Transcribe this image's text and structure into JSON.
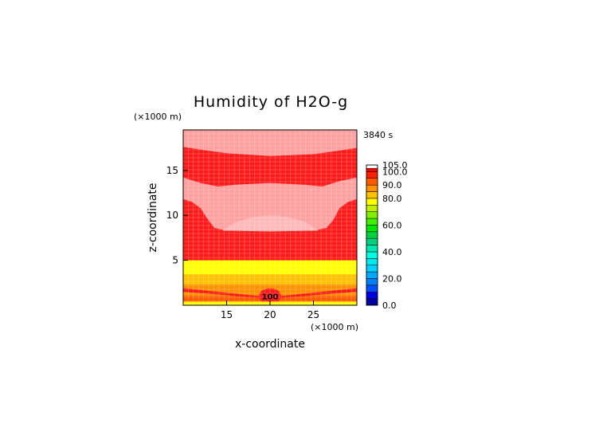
{
  "chart_data": {
    "type": "heatmap",
    "title": "Humidity of H2O-g",
    "xlabel": "x-coordinate",
    "ylabel": "z-coordinate",
    "x_unit": "(×1000 m)",
    "y_unit": "(×1000 m)",
    "time_label": "3840 s",
    "xlim": [
      10,
      30
    ],
    "ylim": [
      0,
      19.5
    ],
    "x_ticks": [
      15,
      20,
      25
    ],
    "y_ticks": [
      5,
      10,
      15
    ],
    "grid": true,
    "colorbar": {
      "ticks": [
        "105.0",
        "100.0",
        "90.0",
        "80.0",
        "60.0",
        "40.0",
        "20.0",
        "0.0"
      ],
      "levels": [
        {
          "from": 0,
          "to": 5,
          "color": "#0000a0"
        },
        {
          "from": 5,
          "to": 10,
          "color": "#0000e0"
        },
        {
          "from": 10,
          "to": 15,
          "color": "#0050ff"
        },
        {
          "from": 15,
          "to": 20,
          "color": "#0080ff"
        },
        {
          "from": 20,
          "to": 25,
          "color": "#00a8ff"
        },
        {
          "from": 25,
          "to": 30,
          "color": "#00d0ff"
        },
        {
          "from": 30,
          "to": 35,
          "color": "#00e8f0"
        },
        {
          "from": 35,
          "to": 40,
          "color": "#00ffe0"
        },
        {
          "from": 40,
          "to": 45,
          "color": "#00e8b0"
        },
        {
          "from": 45,
          "to": 50,
          "color": "#00d080"
        },
        {
          "from": 50,
          "to": 55,
          "color": "#00d040"
        },
        {
          "from": 55,
          "to": 60,
          "color": "#00e800"
        },
        {
          "from": 60,
          "to": 65,
          "color": "#40f000"
        },
        {
          "from": 65,
          "to": 70,
          "color": "#80f000"
        },
        {
          "from": 70,
          "to": 75,
          "color": "#c0f000"
        },
        {
          "from": 75,
          "to": 80,
          "color": "#ffff00"
        },
        {
          "from": 80,
          "to": 85,
          "color": "#ffc000"
        },
        {
          "from": 85,
          "to": 90,
          "color": "#ff9000"
        },
        {
          "from": 90,
          "to": 95,
          "color": "#ff5a00"
        },
        {
          "from": 95,
          "to": 100,
          "color": "#ff2000"
        },
        {
          "from": 100,
          "to": 102.5,
          "color": "#ff0000"
        },
        {
          "from": 102.5,
          "to": 105,
          "color": "#ffffff"
        }
      ]
    },
    "contour_label": "100",
    "contour_label_pos": [
      20,
      1
    ],
    "regions": [
      {
        "name": "saturated-red",
        "value": 101,
        "color": "#ff1a1a"
      },
      {
        "name": "supersaturated",
        "value": 103,
        "color": "#ffa0a0"
      },
      {
        "name": "bright-core",
        "value": 104,
        "color": "#ffb8b8"
      },
      {
        "name": "yellow-band",
        "value": 80,
        "color": "#ffff00",
        "z_range": [
          3.4,
          5.0
        ]
      },
      {
        "name": "light-orange",
        "value": 85,
        "color": "#ffc000",
        "z_range": [
          2.3,
          3.4
        ]
      },
      {
        "name": "orange",
        "value": 90,
        "color": "#ff9000",
        "z_range": [
          1.0,
          2.3
        ]
      },
      {
        "name": "deep-orange",
        "value": 95,
        "color": "#ff5a00",
        "z_range": [
          0.4,
          1.0
        ]
      }
    ]
  }
}
